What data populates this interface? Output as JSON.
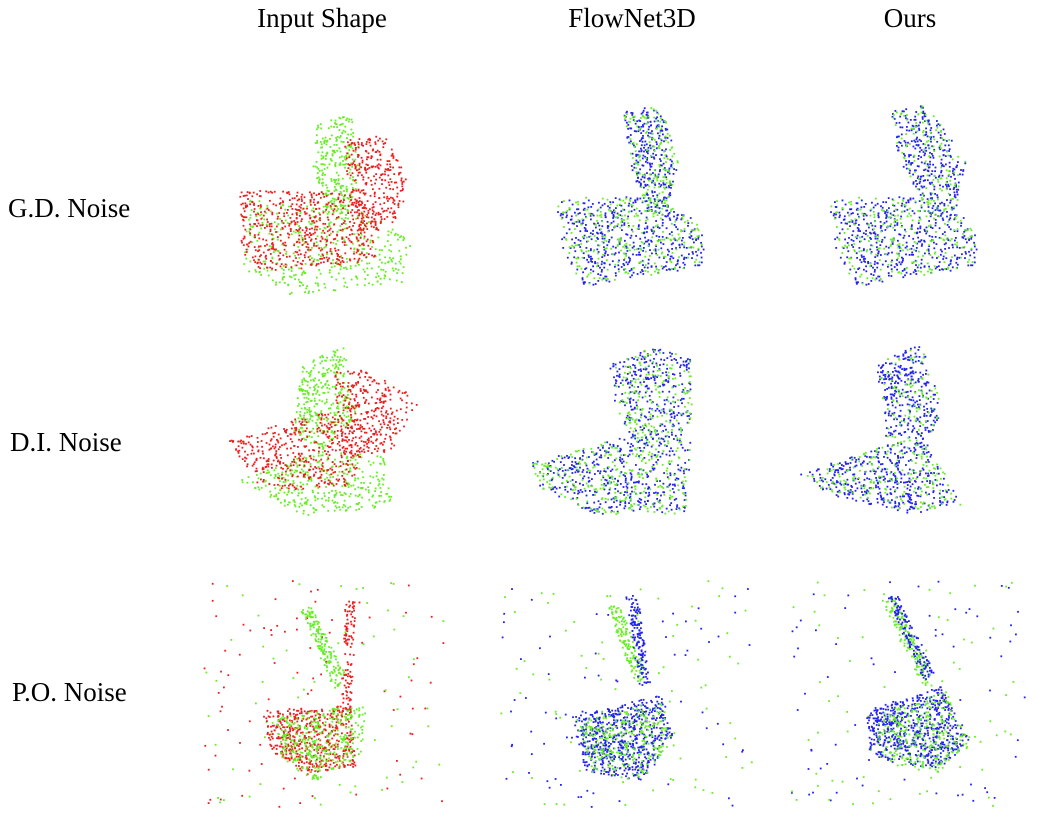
{
  "columns": [
    {
      "label": "Input Shape"
    },
    {
      "label": "FlowNet3D"
    },
    {
      "label": "Ours"
    }
  ],
  "rows": [
    {
      "label": "G.D. Noise",
      "kind": "gd"
    },
    {
      "label": "D.I. Noise",
      "kind": "di"
    },
    {
      "label": "P.O. Noise",
      "kind": "po"
    }
  ],
  "colors": {
    "source": "#ee1d1d",
    "target": "#66ee22",
    "result": "#2222ee"
  }
}
